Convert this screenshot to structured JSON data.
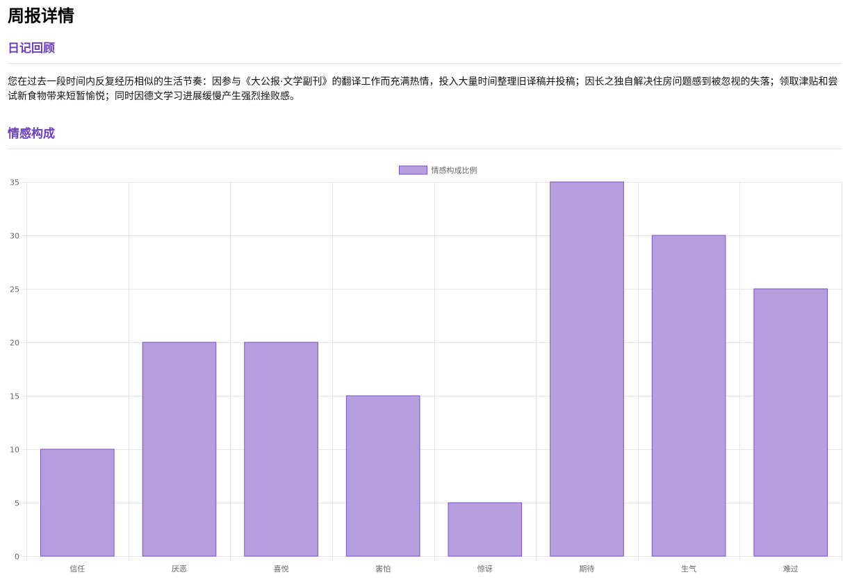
{
  "page": {
    "title": "周报详情"
  },
  "diary_section": {
    "heading": "日记回顾",
    "summary": "您在过去一段时间内反复经历相似的生活节奏：因参与《大公报·文学副刊》的翻译工作而充满热情，投入大量时间整理旧译稿并投稿；因长之独自解决住房问题感到被忽视的失落；领取津贴和尝试新食物带来短暂愉悦；同时因德文学习进展缓慢产生强烈挫败感。"
  },
  "emotion_section": {
    "heading": "情感构成"
  },
  "colors": {
    "accent": "#6b3fc0",
    "bar_fill": "#b59fdf",
    "bar_border": "#7a4fcc",
    "grid": "#e6e6e6"
  },
  "chart_data": {
    "type": "bar",
    "categories": [
      "信任",
      "厌恶",
      "喜悦",
      "害怕",
      "惊讶",
      "期待",
      "生气",
      "难过"
    ],
    "series": [
      {
        "name": "情感构成比例",
        "values": [
          10,
          20,
          20,
          15,
          5,
          35,
          30,
          25
        ]
      }
    ],
    "ylim": [
      0,
      35
    ],
    "yticks": [
      0,
      5,
      10,
      15,
      20,
      25,
      30,
      35
    ],
    "grid": true,
    "legend": "top-center",
    "title": "",
    "xlabel": "",
    "ylabel": ""
  }
}
